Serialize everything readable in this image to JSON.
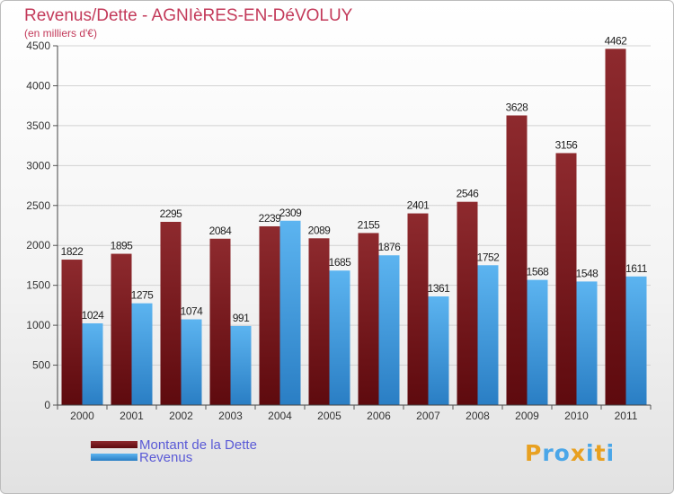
{
  "chart_data": {
    "type": "bar",
    "title": "Revenus/Dette - AGNIèRES-EN-DéVOLUY",
    "subtitle": "(en milliers d'€)",
    "categories": [
      "2000",
      "2001",
      "2002",
      "2003",
      "2004",
      "2005",
      "2006",
      "2007",
      "2008",
      "2009",
      "2010",
      "2011"
    ],
    "series": [
      {
        "name": "Montant de la Dette",
        "color": "#7a1a1e",
        "values": [
          1822,
          1895,
          2295,
          2084,
          2239,
          2089,
          2155,
          2401,
          2546,
          3628,
          3156,
          4462
        ]
      },
      {
        "name": "Revenus",
        "color": "#4aa6e8",
        "values": [
          1024,
          1275,
          1074,
          991,
          2309,
          1685,
          1876,
          1361,
          1752,
          1568,
          1548,
          1611
        ]
      }
    ],
    "ylim": [
      0,
      4500
    ],
    "yticks": [
      0,
      500,
      1000,
      1500,
      2000,
      2500,
      3000,
      3500,
      4000,
      4500
    ],
    "grid": true,
    "legend_position": "bottom-left"
  },
  "brand": {
    "name": "Proxiti",
    "letters": [
      "P",
      "r",
      "o",
      "x",
      "i",
      "t",
      "i"
    ],
    "colors": [
      "#e8a020",
      "#4aa6e8",
      "#4aa6e8",
      "#e8a020",
      "#4aa6e8",
      "#e8a020",
      "#4aa6e8"
    ]
  }
}
